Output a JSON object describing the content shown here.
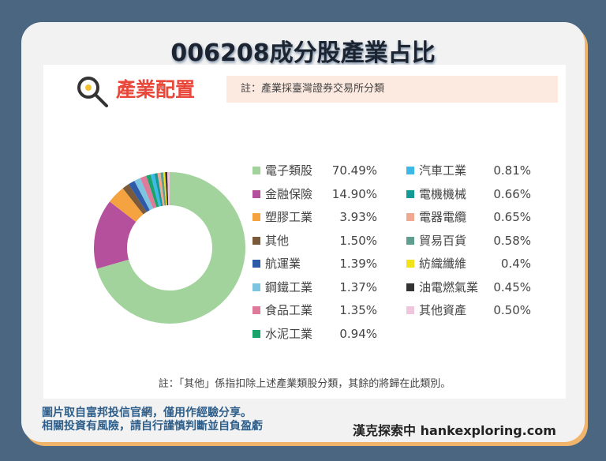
{
  "header": {
    "title": "006208成分股產業占比",
    "section": "產業配置",
    "note": "註：產業採臺灣證券交易所分類",
    "icon": "magnifier-icon"
  },
  "chart_data": {
    "type": "pie",
    "donut": true,
    "categories": [
      "電子類股",
      "金融保險",
      "塑膠工業",
      "其他",
      "航運業",
      "鋼鐵工業",
      "食品工業",
      "水泥工業",
      "汽車工業",
      "電機機械",
      "電器電纜",
      "貿易百貨",
      "紡織纖維",
      "油電燃氣業",
      "其他資產"
    ],
    "labels": [
      "70.49%",
      "14.90%",
      "3.93%",
      "1.50%",
      "1.39%",
      "1.37%",
      "1.35%",
      "0.94%",
      "0.81%",
      "0.66%",
      "0.65%",
      "0.58%",
      "0.4%",
      "0.45%",
      "0.50%"
    ],
    "values": [
      70.49,
      14.9,
      3.93,
      1.5,
      1.39,
      1.37,
      1.35,
      0.94,
      0.81,
      0.66,
      0.65,
      0.58,
      0.4,
      0.45,
      0.5
    ],
    "colors": [
      "#a3d39c",
      "#b5509d",
      "#f4a340",
      "#7b5a3c",
      "#2e5aa8",
      "#7cc4e0",
      "#e07a9a",
      "#1aa36a",
      "#3cb9e6",
      "#139a96",
      "#f0a890",
      "#5f9e8f",
      "#f2e21a",
      "#333333",
      "#efc6dc"
    ],
    "legend": "right"
  },
  "footer": {
    "note": "註：「其他」係指扣除上述產業類股分類，其餘的將歸在此類別。",
    "source1": "圖片取自富邦投信官網，僅用作經驗分享。",
    "source2": "相關投資有風險，請自行謹慎判斷並自負盈虧",
    "brand": "漢克探索中 hankexploring.com"
  }
}
